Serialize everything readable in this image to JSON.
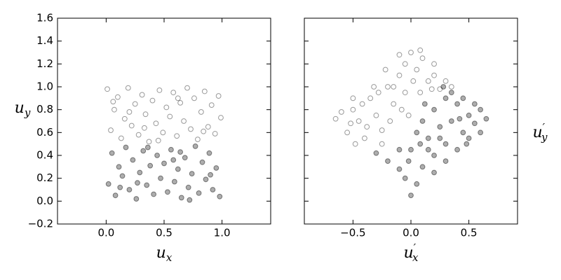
{
  "chart_data": [
    {
      "type": "scatter",
      "xlabel": {
        "base": "u",
        "sub": "x"
      },
      "ylabel": {
        "base": "u",
        "sub": "y"
      },
      "ylabel_position": "left",
      "show_yticklabels": true,
      "xlim": [
        -0.42,
        1.42
      ],
      "ylim": [
        -0.2,
        1.6
      ],
      "xticks": [
        {
          "value": 0,
          "label": "0.0"
        },
        {
          "value": 0.5,
          "label": "0.5"
        },
        {
          "value": 1,
          "label": "1.0"
        }
      ],
      "yticks": [
        {
          "value": -0.2,
          "label": "−0.2"
        },
        {
          "value": 0,
          "label": "0.0"
        },
        {
          "value": 0.2,
          "label": "0.2"
        },
        {
          "value": 0.4,
          "label": "0.4"
        },
        {
          "value": 0.6,
          "label": "0.6"
        },
        {
          "value": 0.8,
          "label": "0.8"
        },
        {
          "value": 1,
          "label": "1.0"
        },
        {
          "value": 1.2,
          "label": "1.2"
        },
        {
          "value": 1.4,
          "label": "1.4"
        },
        {
          "value": 1.6,
          "label": "1.6"
        }
      ],
      "series": [
        {
          "color": "#000000",
          "filled": true,
          "x": [
            0.02,
            0.05,
            0.08,
            0.11,
            0.14,
            0.17,
            0.2,
            0.23,
            0.26,
            0.29,
            0.32,
            0.35,
            0.38,
            0.41,
            0.44,
            0.47,
            0.5,
            0.53,
            0.56,
            0.59,
            0.62,
            0.65,
            0.68,
            0.71,
            0.74,
            0.77,
            0.8,
            0.83,
            0.86,
            0.89,
            0.92,
            0.95,
            0.98,
            0.12,
            0.36,
            0.58,
            0.72,
            0.9,
            0.27,
            0.64
          ],
          "values": [
            0.15,
            0.42,
            0.05,
            0.3,
            0.22,
            0.47,
            0.1,
            0.36,
            0.02,
            0.25,
            0.44,
            0.14,
            0.31,
            0.06,
            0.4,
            0.2,
            0.33,
            0.08,
            0.45,
            0.17,
            0.28,
            0.03,
            0.38,
            0.12,
            0.24,
            0.48,
            0.07,
            0.34,
            0.19,
            0.42,
            0.1,
            0.29,
            0.04,
            0.12,
            0.47,
            0.36,
            0.01,
            0.23,
            0.16,
            0.43
          ]
        },
        {
          "color": "#000000",
          "filled": false,
          "x": [
            0.01,
            0.04,
            0.07,
            0.1,
            0.13,
            0.16,
            0.19,
            0.22,
            0.25,
            0.28,
            0.31,
            0.34,
            0.37,
            0.4,
            0.43,
            0.46,
            0.49,
            0.52,
            0.55,
            0.58,
            0.61,
            0.64,
            0.67,
            0.7,
            0.73,
            0.76,
            0.79,
            0.82,
            0.85,
            0.88,
            0.91,
            0.94,
            0.97,
            0.99,
            0.2,
            0.45,
            0.62,
            0.84,
            0.33,
            0.06
          ],
          "values": [
            0.98,
            0.62,
            0.8,
            0.91,
            0.55,
            0.72,
            0.99,
            0.66,
            0.85,
            0.58,
            0.93,
            0.76,
            0.52,
            0.88,
            0.68,
            0.97,
            0.6,
            0.82,
            0.74,
            0.95,
            0.57,
            0.86,
            0.7,
            0.99,
            0.63,
            0.9,
            0.54,
            0.78,
            0.96,
            0.65,
            0.84,
            0.59,
            0.92,
            0.73,
            0.78,
            0.53,
            0.9,
            0.61,
            0.64,
            0.87
          ]
        }
      ]
    },
    {
      "type": "scatter",
      "xlabel": {
        "base": "u",
        "sub": "x",
        "prime": "′"
      },
      "ylabel": {
        "base": "u",
        "sub": "y",
        "prime": "′"
      },
      "ylabel_position": "right",
      "show_yticklabels": false,
      "xlim": [
        -0.92,
        0.92
      ],
      "ylim": [
        -0.2,
        1.6
      ],
      "xticks": [
        {
          "value": -0.5,
          "label": "−0.5"
        },
        {
          "value": 0,
          "label": "0.0"
        },
        {
          "value": 0.5,
          "label": "0.5"
        }
      ],
      "yticks": [
        -0.2,
        0,
        0.2,
        0.4,
        0.6,
        0.8,
        1,
        1.2,
        1.4,
        1.6
      ],
      "series": [
        {
          "color": "#000000",
          "filled": true,
          "x": [
            0.0,
            -0.05,
            0.05,
            0.1,
            -0.1,
            -0.2,
            -0.3,
            0.2,
            0.15,
            0.3,
            0.25,
            0.4,
            0.35,
            0.45,
            0.5,
            0.55,
            0.6,
            0.65,
            0.5,
            0.4,
            0.3,
            0.35,
            0.2,
            0.1,
            0.05,
            0.0,
            -0.1,
            0.2,
            0.3,
            0.45,
            0.25,
            0.12,
            0.15,
            -0.02,
            0.08,
            0.55,
            0.42,
            0.6,
            0.28,
            0.48
          ],
          "values": [
            0.05,
            0.2,
            0.15,
            0.3,
            0.28,
            0.35,
            0.42,
            0.4,
            0.55,
            0.5,
            0.65,
            0.45,
            0.7,
            0.6,
            0.75,
            0.68,
            0.8,
            0.72,
            0.55,
            0.85,
            0.9,
            0.95,
            0.8,
            0.7,
            0.6,
            0.45,
            0.45,
            0.25,
            0.35,
            0.9,
            0.55,
            0.85,
            0.45,
            0.35,
            0.5,
            0.85,
            0.72,
            0.6,
            1.0,
            0.5
          ]
        },
        {
          "color": "#000000",
          "filled": false,
          "x": [
            -0.65,
            -0.55,
            -0.5,
            -0.45,
            -0.4,
            -0.35,
            -0.3,
            -0.25,
            -0.2,
            -0.15,
            -0.1,
            -0.05,
            0.0,
            0.05,
            0.1,
            -0.05,
            0.15,
            0.2,
            0.2,
            0.3,
            0.35,
            -0.6,
            -0.48,
            -0.38,
            -0.28,
            -0.18,
            -0.08,
            -0.32,
            -0.22,
            -0.1,
            0.02,
            0.08,
            -0.42,
            -0.52,
            0.08,
            0.18,
            -0.02,
            -0.25,
            -0.5,
            -0.15,
            0.25
          ],
          "values": [
            0.72,
            0.6,
            0.8,
            0.7,
            0.55,
            0.9,
            0.75,
            0.62,
            1.0,
            0.85,
            1.1,
            0.95,
            1.3,
            1.15,
            1.25,
            1.2,
            1.05,
            1.1,
            1.2,
            1.05,
            1.0,
            0.78,
            0.5,
            0.65,
            0.95,
            0.7,
            0.8,
            1.0,
            1.15,
            1.28,
            1.05,
            0.95,
            0.85,
            0.68,
            1.32,
            0.98,
            0.75,
            0.5,
            0.9,
            1.0,
            0.98
          ]
        }
      ]
    }
  ]
}
